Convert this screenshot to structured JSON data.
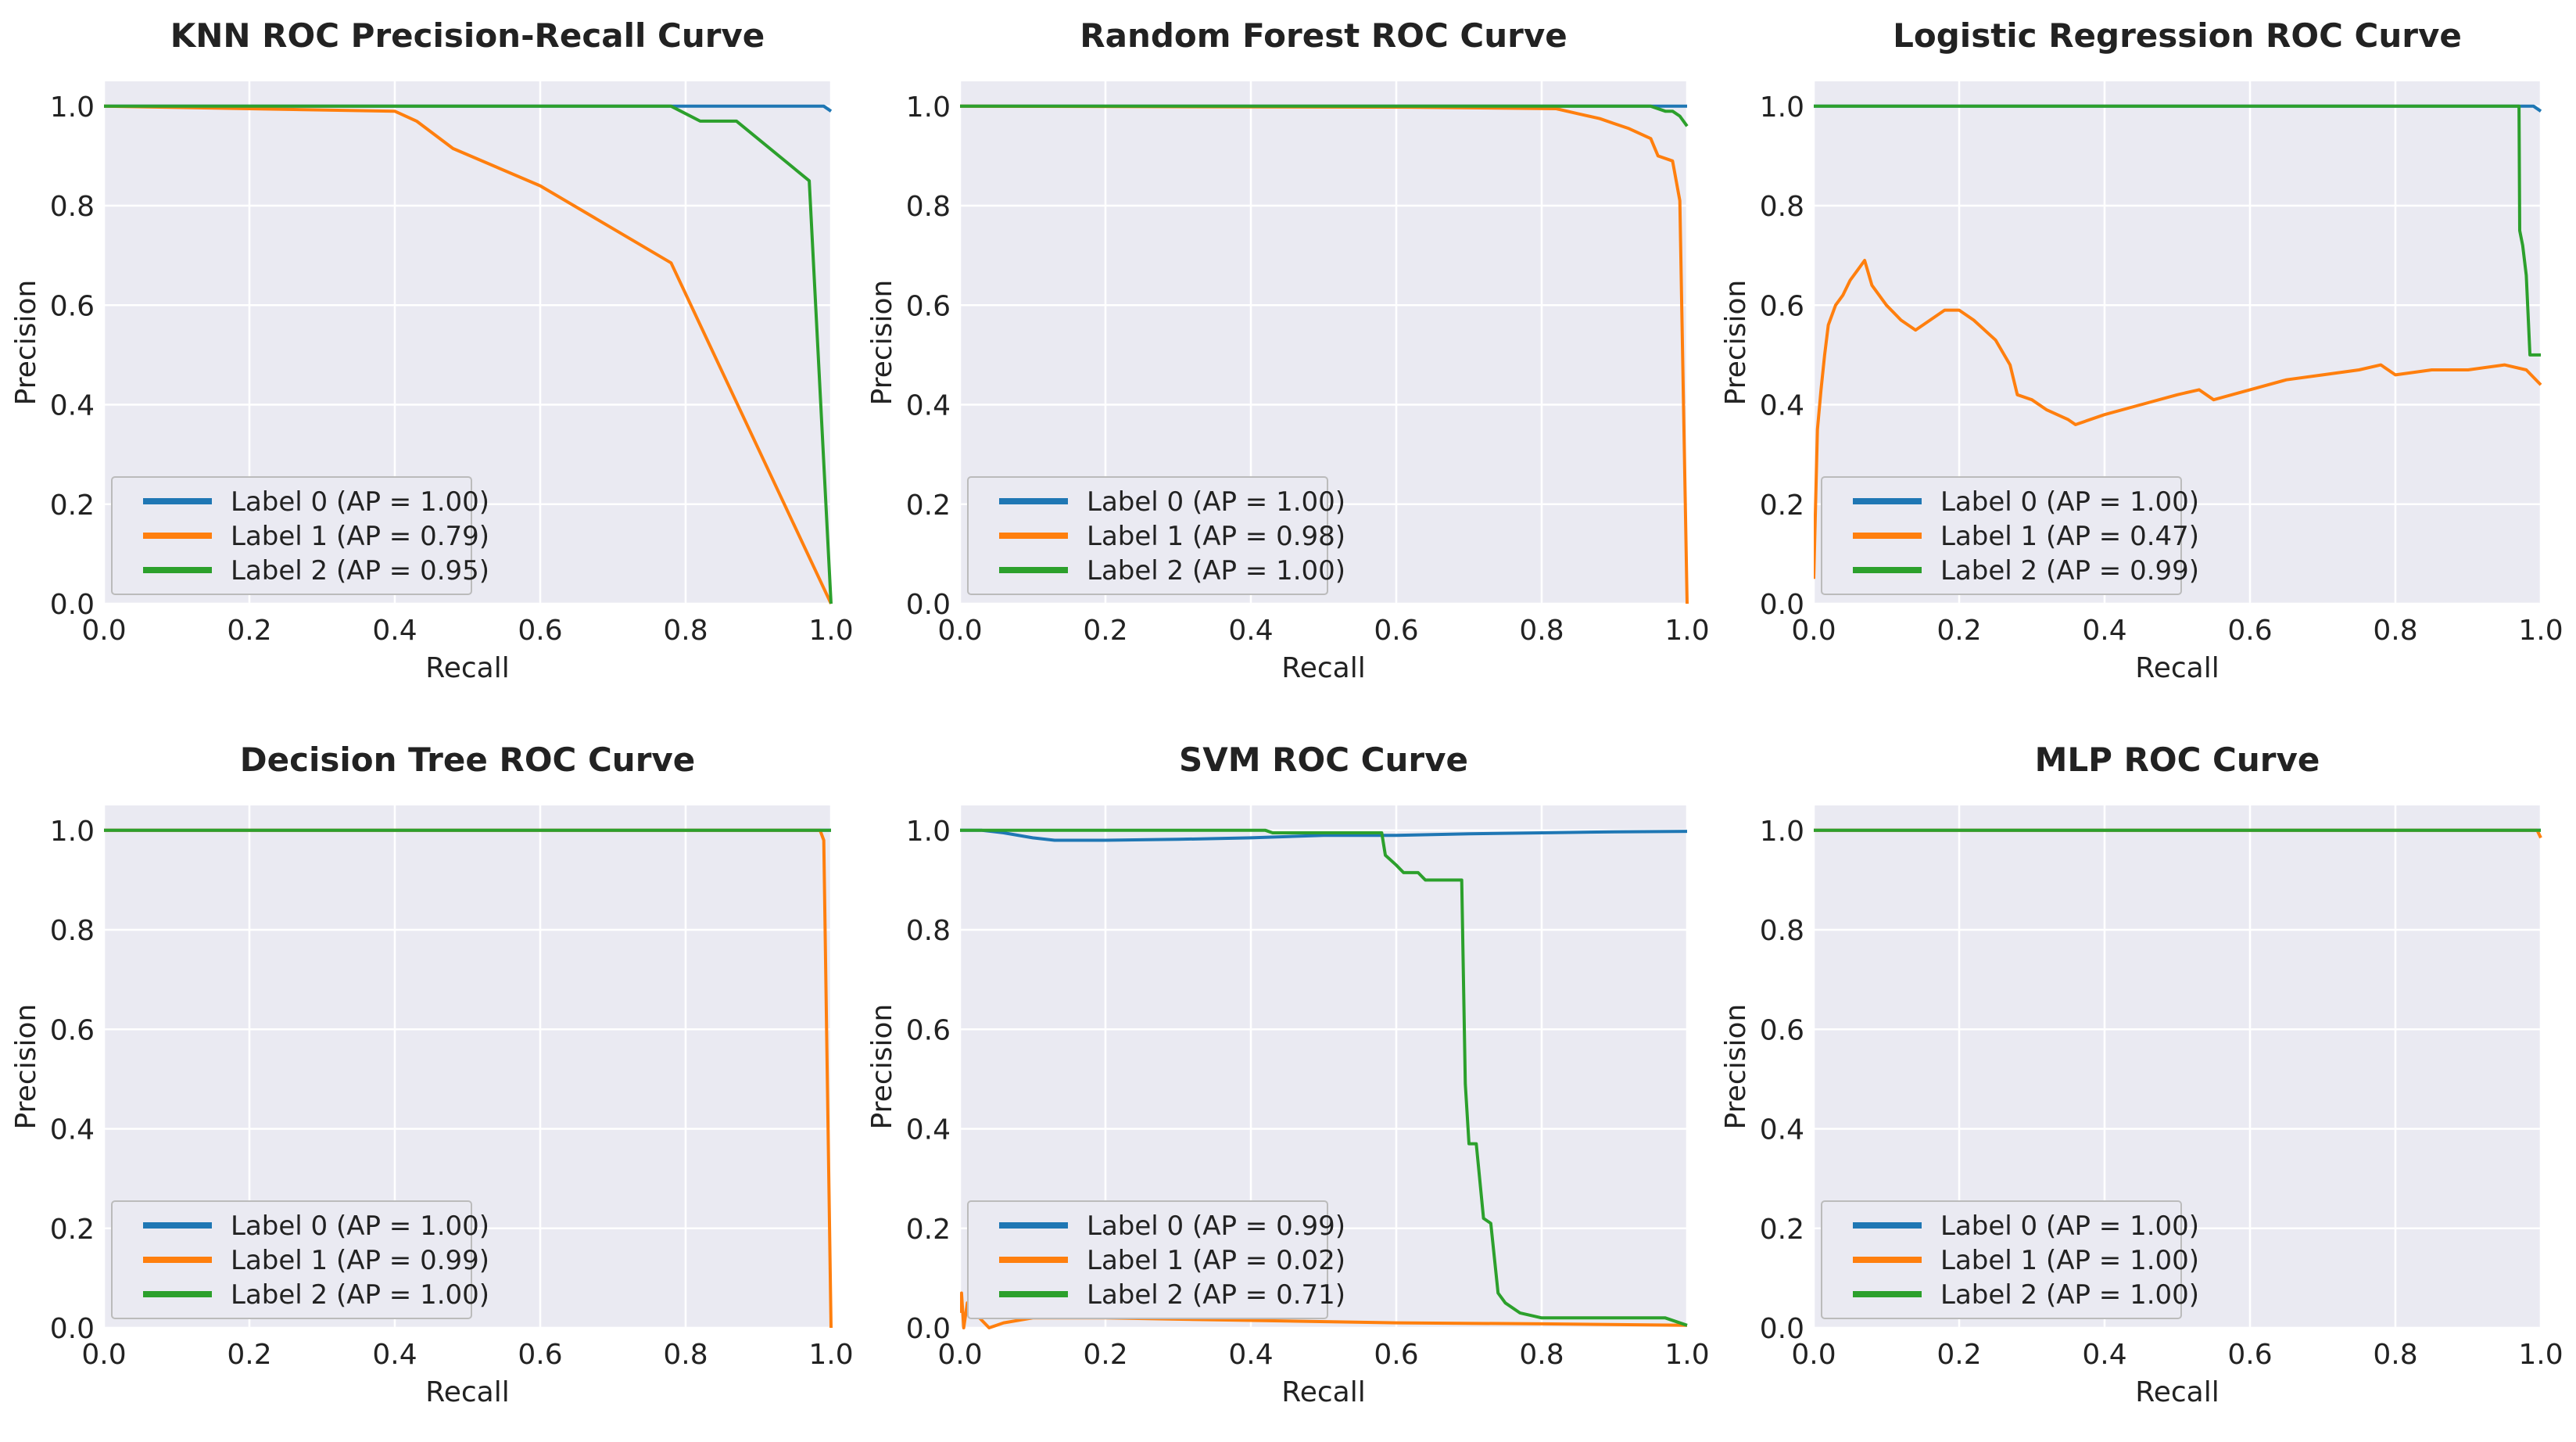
{
  "colors": {
    "label0": "#1f77b4",
    "label1": "#ff7f0e",
    "label2": "#2ca02c",
    "background": "#eaeaf2",
    "grid": "#ffffff"
  },
  "chart_data": [
    {
      "type": "line",
      "title": "KNN ROC Precision-Recall Curve",
      "xlabel": "Recall",
      "ylabel": "Precision",
      "xlim": [
        0,
        1
      ],
      "ylim": [
        0,
        1.05
      ],
      "xticks": [
        "0.0",
        "0.2",
        "0.4",
        "0.6",
        "0.8",
        "1.0"
      ],
      "yticks": [
        "0.0",
        "0.2",
        "0.4",
        "0.6",
        "0.8",
        "1.0"
      ],
      "legend_position": "lower-left",
      "series": [
        {
          "name": "Label 0 (AP = 1.00)",
          "x": [
            0,
            0.5,
            0.9,
            0.99,
            1.0
          ],
          "y": [
            1.0,
            1.0,
            1.0,
            1.0,
            0.99
          ]
        },
        {
          "name": "Label 1 (AP = 0.79)",
          "x": [
            0,
            0.2,
            0.4,
            0.43,
            0.48,
            0.6,
            0.78,
            1.0
          ],
          "y": [
            1.0,
            0.995,
            0.99,
            0.97,
            0.915,
            0.84,
            0.685,
            0.0
          ]
        },
        {
          "name": "Label 2 (AP = 0.95)",
          "x": [
            0,
            0.78,
            0.82,
            0.87,
            0.97,
            1.0
          ],
          "y": [
            1.0,
            1.0,
            0.97,
            0.97,
            0.85,
            0.0
          ]
        }
      ]
    },
    {
      "type": "line",
      "title": "Random Forest ROC Curve",
      "xlabel": "Recall",
      "ylabel": "Precision",
      "xlim": [
        0,
        1
      ],
      "ylim": [
        0,
        1.05
      ],
      "xticks": [
        "0.0",
        "0.2",
        "0.4",
        "0.6",
        "0.8",
        "1.0"
      ],
      "yticks": [
        "0.0",
        "0.2",
        "0.4",
        "0.6",
        "0.8",
        "1.0"
      ],
      "legend_position": "lower-left",
      "series": [
        {
          "name": "Label 0 (AP = 1.00)",
          "x": [
            0,
            0.5,
            0.99,
            1.0
          ],
          "y": [
            1.0,
            1.0,
            1.0,
            1.0
          ]
        },
        {
          "name": "Label 1 (AP = 0.98)",
          "x": [
            0,
            0.62,
            0.82,
            0.85,
            0.88,
            0.9,
            0.92,
            0.95,
            0.96,
            0.98,
            0.99,
            1.0
          ],
          "y": [
            1.0,
            0.998,
            0.995,
            0.985,
            0.975,
            0.965,
            0.955,
            0.935,
            0.9,
            0.89,
            0.81,
            0.0
          ]
        },
        {
          "name": "Label 2 (AP = 1.00)",
          "x": [
            0,
            0.95,
            0.97,
            0.98,
            0.99,
            1.0
          ],
          "y": [
            1.0,
            1.0,
            0.99,
            0.99,
            0.98,
            0.96
          ]
        }
      ]
    },
    {
      "type": "line",
      "title": "Logistic Regression ROC Curve",
      "xlabel": "Recall",
      "ylabel": "Precision",
      "xlim": [
        0,
        1
      ],
      "ylim": [
        0,
        1.05
      ],
      "xticks": [
        "0.0",
        "0.2",
        "0.4",
        "0.6",
        "0.8",
        "1.0"
      ],
      "yticks": [
        "0.0",
        "0.2",
        "0.4",
        "0.6",
        "0.8",
        "1.0"
      ],
      "legend_position": "lower-left",
      "series": [
        {
          "name": "Label 0 (AP = 1.00)",
          "x": [
            0,
            0.5,
            0.99,
            1.0
          ],
          "y": [
            1.0,
            1.0,
            1.0,
            0.99
          ]
        },
        {
          "name": "Label 1 (AP = 0.47)",
          "x": [
            0,
            0.005,
            0.01,
            0.015,
            0.02,
            0.03,
            0.04,
            0.05,
            0.06,
            0.07,
            0.08,
            0.09,
            0.1,
            0.12,
            0.14,
            0.16,
            0.18,
            0.2,
            0.22,
            0.25,
            0.27,
            0.28,
            0.3,
            0.32,
            0.35,
            0.36,
            0.4,
            0.45,
            0.5,
            0.53,
            0.55,
            0.6,
            0.65,
            0.7,
            0.75,
            0.78,
            0.8,
            0.85,
            0.9,
            0.95,
            0.98,
            1.0
          ],
          "y": [
            0.05,
            0.35,
            0.43,
            0.5,
            0.56,
            0.6,
            0.62,
            0.65,
            0.67,
            0.69,
            0.64,
            0.62,
            0.6,
            0.57,
            0.55,
            0.57,
            0.59,
            0.59,
            0.57,
            0.53,
            0.48,
            0.42,
            0.41,
            0.39,
            0.37,
            0.36,
            0.38,
            0.4,
            0.42,
            0.43,
            0.41,
            0.43,
            0.45,
            0.46,
            0.47,
            0.48,
            0.46,
            0.47,
            0.47,
            0.48,
            0.47,
            0.44
          ]
        },
        {
          "name": "Label 2 (AP = 0.99)",
          "x": [
            0,
            0.5,
            0.97,
            0.971,
            0.975,
            0.98,
            0.985,
            1.0
          ],
          "y": [
            1.0,
            1.0,
            1.0,
            0.75,
            0.72,
            0.66,
            0.5,
            0.5
          ]
        }
      ]
    },
    {
      "type": "line",
      "title": "Decision Tree ROC Curve",
      "xlabel": "Recall",
      "ylabel": "Precision",
      "xlim": [
        0,
        1
      ],
      "ylim": [
        0,
        1.05
      ],
      "xticks": [
        "0.0",
        "0.2",
        "0.4",
        "0.6",
        "0.8",
        "1.0"
      ],
      "yticks": [
        "0.0",
        "0.2",
        "0.4",
        "0.6",
        "0.8",
        "1.0"
      ],
      "legend_position": "lower-left",
      "series": [
        {
          "name": "Label 0 (AP = 1.00)",
          "x": [
            0,
            0.5,
            1.0
          ],
          "y": [
            1.0,
            1.0,
            1.0
          ]
        },
        {
          "name": "Label 1 (AP = 0.99)",
          "x": [
            0,
            0.5,
            0.985,
            0.99,
            1.0
          ],
          "y": [
            1.0,
            1.0,
            1.0,
            0.98,
            0.0
          ]
        },
        {
          "name": "Label 2 (AP = 1.00)",
          "x": [
            0,
            0.5,
            1.0
          ],
          "y": [
            1.0,
            1.0,
            1.0
          ]
        }
      ]
    },
    {
      "type": "line",
      "title": "SVM ROC Curve",
      "xlabel": "Recall",
      "ylabel": "Precision",
      "xlim": [
        0,
        1
      ],
      "ylim": [
        0,
        1.05
      ],
      "xticks": [
        "0.0",
        "0.2",
        "0.4",
        "0.6",
        "0.8",
        "1.0"
      ],
      "yticks": [
        "0.0",
        "0.2",
        "0.4",
        "0.6",
        "0.8",
        "1.0"
      ],
      "legend_position": "lower-left",
      "series": [
        {
          "name": "Label 0 (AP = 0.99)",
          "x": [
            0,
            0.03,
            0.06,
            0.1,
            0.13,
            0.2,
            0.3,
            0.4,
            0.5,
            0.6,
            0.7,
            0.8,
            0.9,
            1.0
          ],
          "y": [
            1.0,
            1.0,
            0.995,
            0.985,
            0.98,
            0.98,
            0.982,
            0.985,
            0.99,
            0.99,
            0.993,
            0.995,
            0.997,
            0.998
          ]
        },
        {
          "name": "Label 1 (AP = 0.02)",
          "x": [
            0,
            0.002,
            0.005,
            0.01,
            0.02,
            0.04,
            0.06,
            0.1,
            0.2,
            0.4,
            0.6,
            0.8,
            1.0
          ],
          "y": [
            0.03,
            0.07,
            0.0,
            0.05,
            0.03,
            0.0,
            0.01,
            0.02,
            0.02,
            0.015,
            0.01,
            0.008,
            0.005
          ]
        },
        {
          "name": "Label 2 (AP = 0.71)",
          "x": [
            0,
            0.42,
            0.43,
            0.58,
            0.585,
            0.6,
            0.61,
            0.63,
            0.64,
            0.69,
            0.695,
            0.7,
            0.71,
            0.72,
            0.73,
            0.74,
            0.75,
            0.77,
            0.8,
            0.9,
            0.97,
            1.0
          ],
          "y": [
            1.0,
            1.0,
            0.995,
            0.995,
            0.95,
            0.93,
            0.915,
            0.915,
            0.9,
            0.9,
            0.49,
            0.37,
            0.37,
            0.22,
            0.21,
            0.07,
            0.05,
            0.03,
            0.02,
            0.02,
            0.02,
            0.005
          ]
        }
      ]
    },
    {
      "type": "line",
      "title": "MLP ROC Curve",
      "xlabel": "Recall",
      "ylabel": "Precision",
      "xlim": [
        0,
        1
      ],
      "ylim": [
        0,
        1.05
      ],
      "xticks": [
        "0.0",
        "0.2",
        "0.4",
        "0.6",
        "0.8",
        "1.0"
      ],
      "yticks": [
        "0.0",
        "0.2",
        "0.4",
        "0.6",
        "0.8",
        "1.0"
      ],
      "legend_position": "lower-left",
      "series": [
        {
          "name": "Label 0 (AP = 1.00)",
          "x": [
            0,
            0.5,
            1.0
          ],
          "y": [
            1.0,
            1.0,
            1.0
          ]
        },
        {
          "name": "Label 1 (AP = 1.00)",
          "x": [
            0,
            0.5,
            0.995,
            1.0
          ],
          "y": [
            1.0,
            1.0,
            1.0,
            0.985
          ]
        },
        {
          "name": "Label 2 (AP = 1.00)",
          "x": [
            0,
            0.5,
            1.0
          ],
          "y": [
            1.0,
            1.0,
            1.0
          ]
        }
      ]
    }
  ]
}
